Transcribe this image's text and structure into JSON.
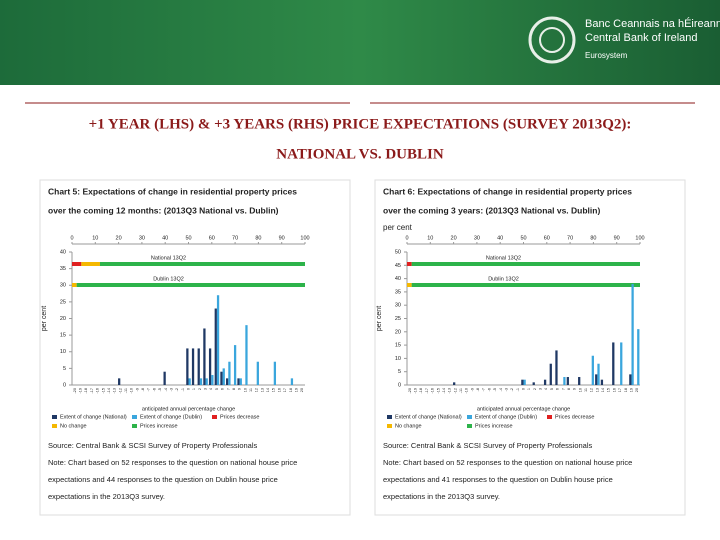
{
  "header": {
    "bank_irish": "Banc Ceannais na hÉireann",
    "bank_english": "Central Bank of Ireland",
    "eurosystem": "Eurosystem"
  },
  "title_lines": [
    "+1 YEAR (LHS) & +3 YEARS (RHS) PRICE EXPECTATIONS (SURVEY 2013Q2):",
    "NATIONAL VS. DUBLIN"
  ],
  "chart_data": [
    {
      "type": "bar",
      "title_lines": [
        "Chart 5: Expectations of change in residential property prices",
        "over the coming 12 months: (2013Q3 National vs. Dublin)"
      ],
      "y_label": "per cent",
      "x_label": "anticipated annual percentage change",
      "ylim": [
        0,
        40
      ],
      "yticks": [
        0,
        5,
        10,
        15,
        20,
        25,
        30,
        35,
        40
      ],
      "categories": [
        "-20",
        "-19",
        "-18",
        "-17",
        "-16",
        "-15",
        "-14",
        "-13",
        "-12",
        "-11",
        "-10",
        "-9",
        "-8",
        "-7",
        "-6",
        "-5",
        "-4",
        "-3",
        "-2",
        "-1",
        "0",
        "1",
        "2",
        "3",
        "4",
        "5",
        "6",
        "7",
        "8",
        "9",
        "10",
        "11",
        "12",
        "13",
        "14",
        "15",
        "16",
        "17",
        "18",
        "19",
        "20"
      ],
      "series": [
        {
          "name": "Extent of change (National)",
          "color": "#1f3864",
          "values": [
            0,
            0,
            0,
            0,
            0,
            0,
            0,
            0,
            2,
            0,
            0,
            0,
            0,
            0,
            0,
            0,
            4,
            0,
            0,
            0,
            11,
            11,
            11,
            17,
            11,
            23,
            4,
            2,
            0,
            2,
            0,
            0,
            0,
            0,
            0,
            0,
            0,
            0,
            0,
            0,
            0
          ]
        },
        {
          "name": "Extent of change (Dublin)",
          "color": "#3aa6dd",
          "values": [
            0,
            0,
            0,
            0,
            0,
            0,
            0,
            0,
            0,
            0,
            0,
            0,
            0,
            0,
            0,
            0,
            0,
            0,
            0,
            0,
            2,
            0,
            2,
            2,
            3,
            27,
            5,
            7,
            12,
            2,
            18,
            0,
            7,
            0,
            0,
            7,
            0,
            0,
            2,
            0,
            0
          ]
        }
      ],
      "share_xlim": [
        0,
        100
      ],
      "share_xticks": [
        0,
        10,
        20,
        30,
        40,
        50,
        60,
        70,
        80,
        90,
        100
      ],
      "share_series": [
        {
          "name": "Prices decrease",
          "color": "#e02020"
        },
        {
          "name": "No change",
          "color": "#f5b800"
        },
        {
          "name": "Prices increase",
          "color": "#2db34a"
        }
      ],
      "share_bars": [
        {
          "name": "National 13Q2",
          "values": [
            4,
            8,
            88
          ]
        },
        {
          "name": "Dublin 13Q2",
          "values": [
            0,
            2,
            98
          ]
        }
      ],
      "source": "Source: Central Bank & SCSI Survey of Property Professionals",
      "note_lines": [
        "Note: Chart based on 52 responses to the question on national house price",
        "expectations and 44 responses to the question on Dublin house price",
        "expectations in the 2013Q3 survey."
      ]
    },
    {
      "type": "bar",
      "title_lines": [
        "Chart 6: Expectations of change in residential property prices",
        "over the coming 3 years: (2013Q3 National vs. Dublin)"
      ],
      "unit_label": "per cent",
      "y_label": "per cent",
      "x_label": "anticipated annual percentage change",
      "ylim": [
        0,
        50
      ],
      "yticks": [
        0,
        5,
        10,
        15,
        20,
        25,
        30,
        35,
        40,
        45,
        50
      ],
      "categories": [
        "-20",
        "-19",
        "-18",
        "-17",
        "-16",
        "-15",
        "-14",
        "-13",
        "-12",
        "-11",
        "-10",
        "-9",
        "-8",
        "-7",
        "-6",
        "-5",
        "-4",
        "-3",
        "-2",
        "-1",
        "0",
        "1",
        "2",
        "3",
        "4",
        "5",
        "6",
        "7",
        "8",
        "9",
        "10",
        "11",
        "12",
        "13",
        "14",
        "15",
        "16",
        "17",
        "18",
        "19",
        "20"
      ],
      "series": [
        {
          "name": "Extent of change (National)",
          "color": "#1f3864",
          "values": [
            0,
            0,
            0,
            0,
            0,
            0,
            0,
            0,
            1,
            0,
            0,
            0,
            0,
            0,
            0,
            0,
            0,
            0,
            0,
            0,
            2,
            0,
            1,
            0,
            2,
            8,
            13,
            0,
            3,
            0,
            3,
            0,
            0,
            4,
            2,
            0,
            16,
            0,
            0,
            4,
            0
          ]
        },
        {
          "name": "Extent of change (Dublin)",
          "color": "#3aa6dd",
          "values": [
            0,
            0,
            0,
            0,
            0,
            0,
            0,
            0,
            0,
            0,
            0,
            0,
            0,
            0,
            0,
            0,
            0,
            0,
            0,
            0,
            2,
            0,
            0,
            0,
            0,
            0,
            0,
            3,
            0,
            0,
            0,
            0,
            11,
            8,
            0,
            0,
            0,
            16,
            0,
            38,
            21
          ]
        }
      ],
      "share_xlim": [
        0,
        100
      ],
      "share_xticks": [
        0,
        10,
        20,
        30,
        40,
        50,
        60,
        70,
        80,
        90,
        100
      ],
      "share_series": [
        {
          "name": "Prices decrease",
          "color": "#e02020"
        },
        {
          "name": "No change",
          "color": "#f5b800"
        },
        {
          "name": "Prices increase",
          "color": "#2db34a"
        }
      ],
      "share_bars": [
        {
          "name": "National 13Q2",
          "values": [
            2,
            0,
            98
          ]
        },
        {
          "name": "Dublin 13Q2",
          "values": [
            0,
            2,
            98
          ]
        }
      ],
      "source": "Source: Central Bank & SCSI Survey of Property Professionals",
      "note_lines": [
        "Note: Chart based on 52 responses to the question on national house price",
        "expectations and 41 responses to the question on Dublin house price",
        "expectations in the 2013Q3 survey."
      ]
    }
  ]
}
